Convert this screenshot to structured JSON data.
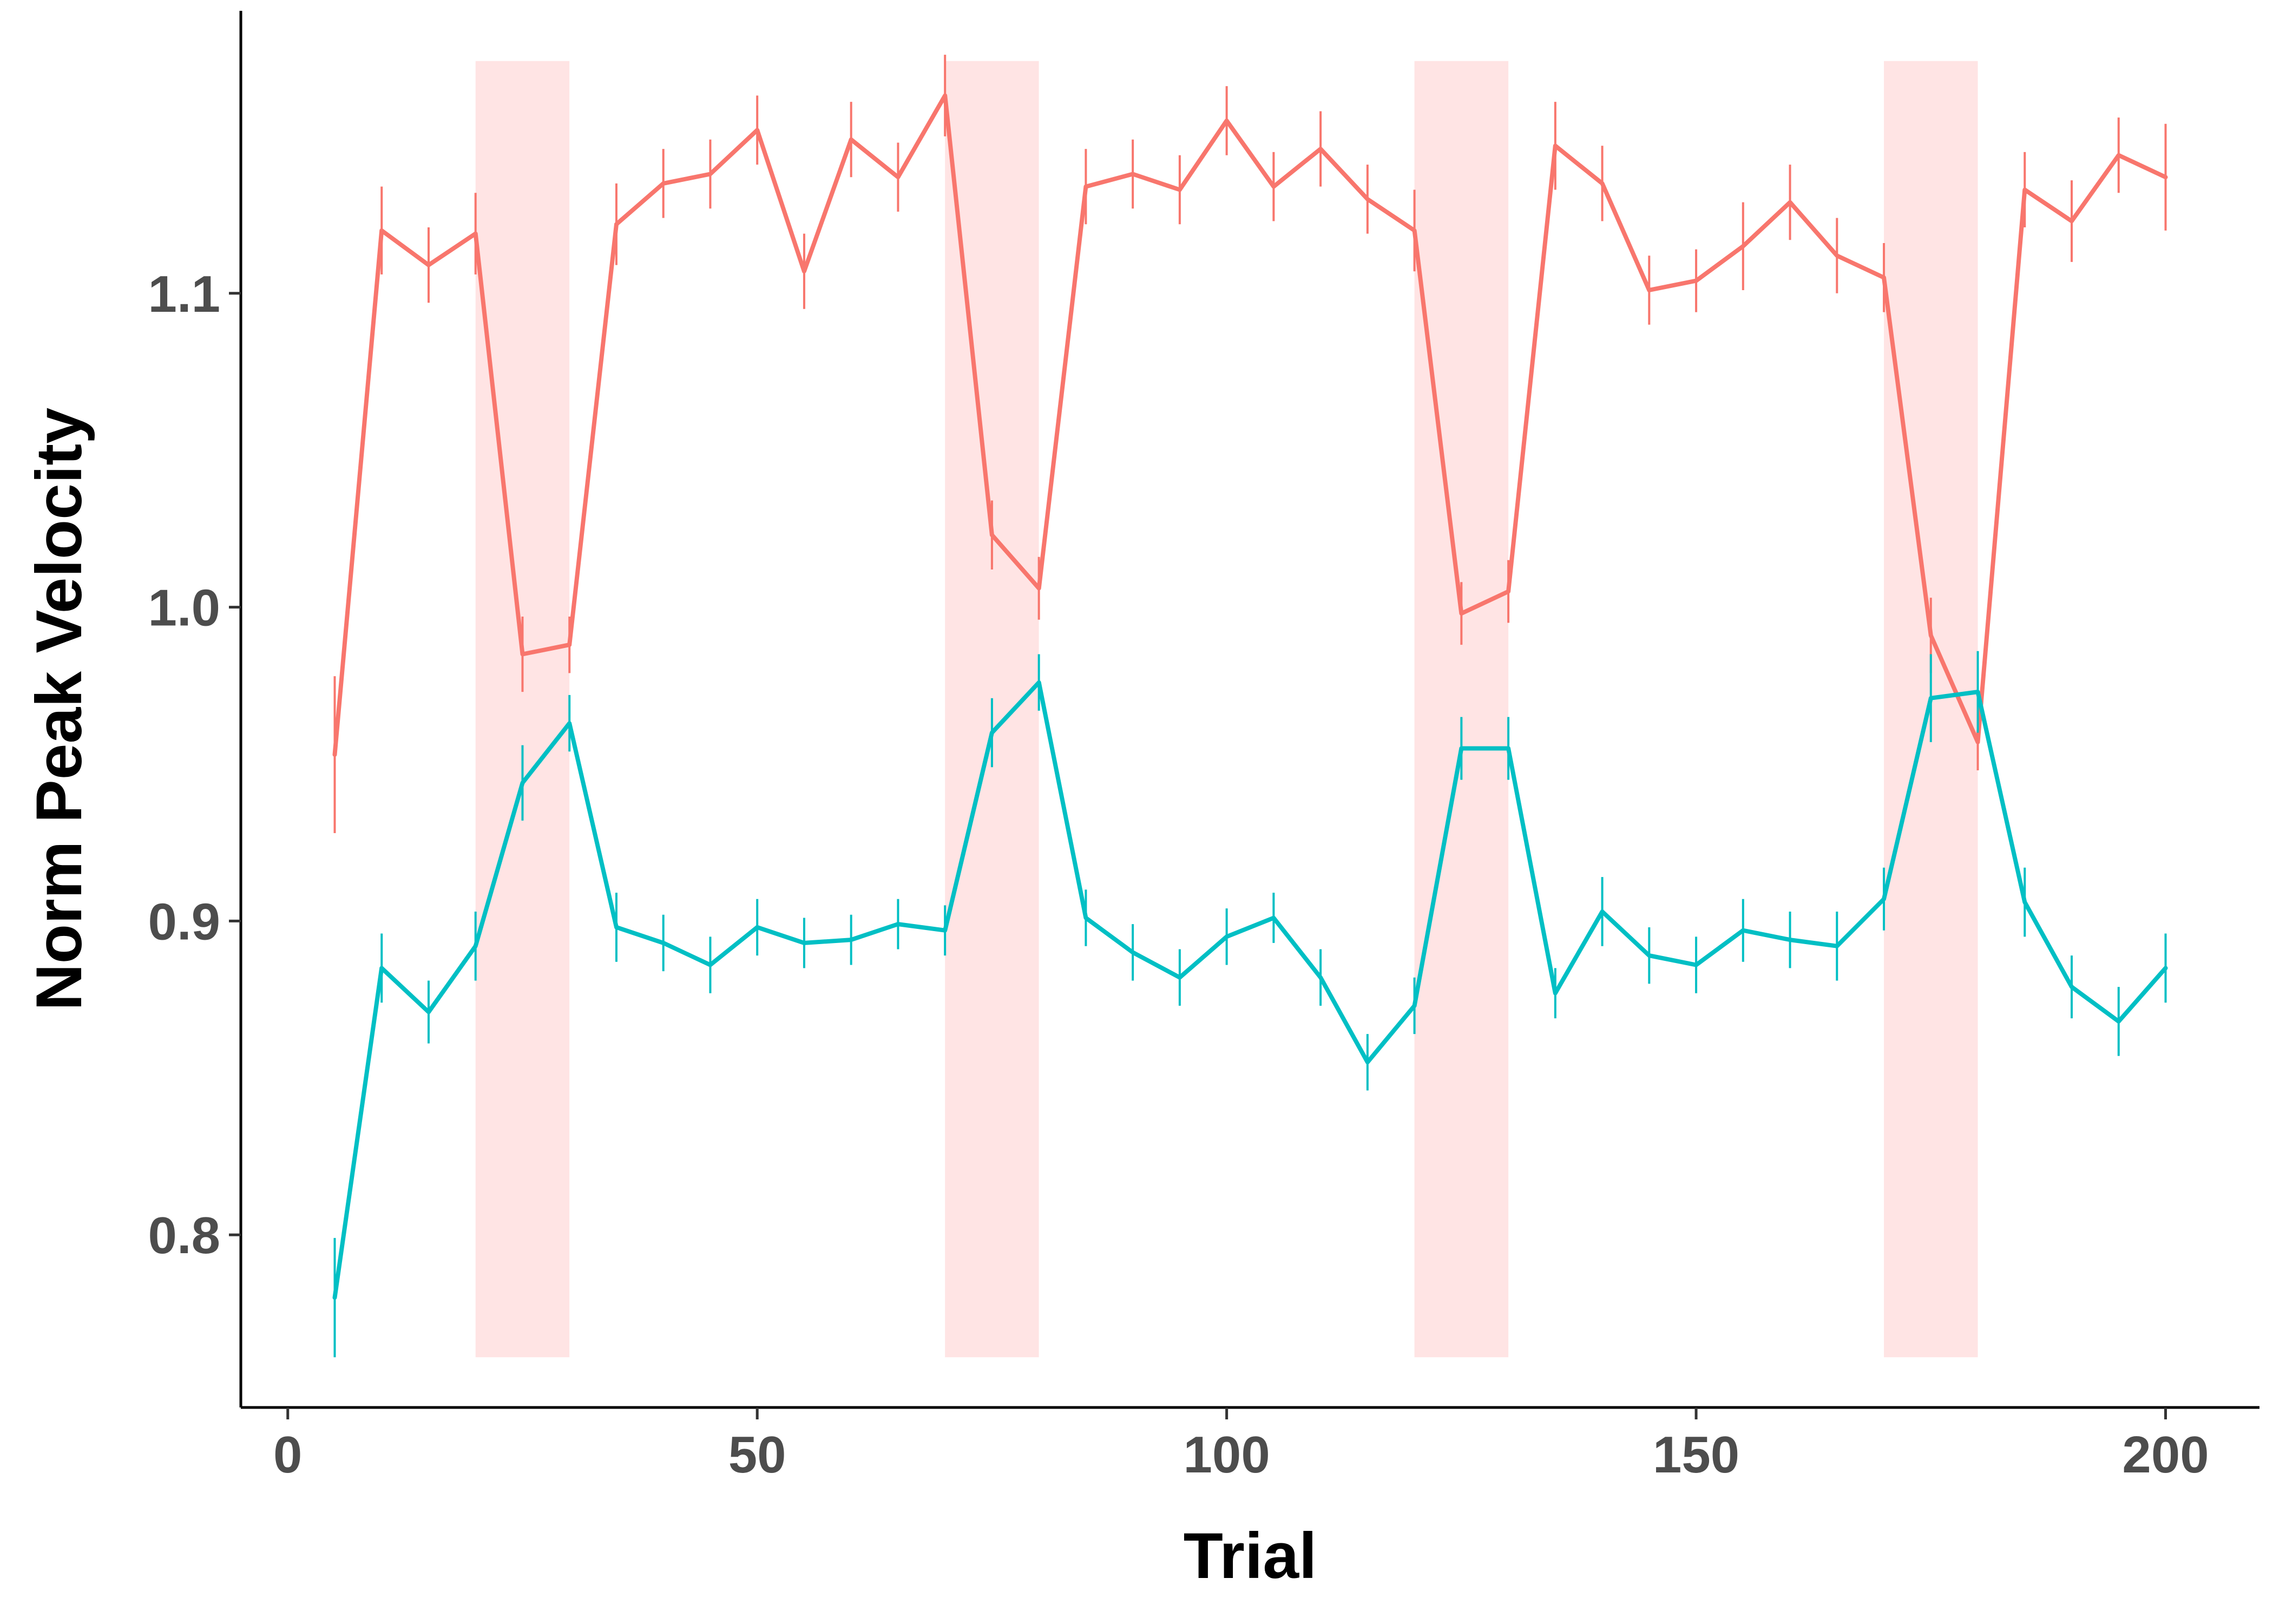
{
  "chart_data": {
    "type": "line",
    "xlabel": "Trial",
    "ylabel": "Norm Peak Velocity",
    "xlim": [
      -5,
      210
    ],
    "ylim": [
      0.745,
      1.19
    ],
    "x_ticks": [
      0,
      50,
      100,
      150,
      200
    ],
    "y_ticks": [
      0.8,
      0.9,
      1.0,
      1.1
    ],
    "x_tick_labels": [
      "0",
      "50",
      "100",
      "150",
      "200"
    ],
    "y_tick_labels": [
      "0.8",
      "0.9",
      "1.0",
      "1.1"
    ],
    "grid": false,
    "legend": "none",
    "shaded_regions": {
      "color": "#ffe4e4",
      "y_range": [
        0.761,
        1.174
      ],
      "x_ranges": [
        [
          20,
          30
        ],
        [
          70,
          80
        ],
        [
          120,
          130
        ],
        [
          170,
          180
        ]
      ]
    },
    "series": [
      {
        "color": "#f8766d",
        "x": [
          5,
          10,
          15,
          20,
          25,
          30,
          35,
          40,
          45,
          50,
          55,
          60,
          65,
          70,
          75,
          80,
          85,
          90,
          95,
          100,
          105,
          110,
          115,
          120,
          125,
          130,
          135,
          140,
          145,
          150,
          155,
          160,
          165,
          170,
          175,
          180,
          185,
          190,
          195,
          200
        ],
        "y": [
          0.953,
          1.12,
          1.109,
          1.119,
          0.985,
          0.988,
          1.122,
          1.135,
          1.138,
          1.152,
          1.107,
          1.149,
          1.137,
          1.163,
          1.023,
          1.006,
          1.134,
          1.138,
          1.133,
          1.155,
          1.134,
          1.146,
          1.13,
          1.12,
          0.998,
          1.005,
          1.147,
          1.135,
          1.101,
          1.104,
          1.115,
          1.129,
          1.112,
          1.105,
          0.991,
          0.957,
          1.133,
          1.123,
          1.144,
          1.137
        ],
        "error": [
          0.025,
          0.014,
          0.012,
          0.013,
          0.012,
          0.009,
          0.013,
          0.011,
          0.011,
          0.011,
          0.012,
          0.012,
          0.011,
          0.013,
          0.011,
          0.01,
          0.012,
          0.011,
          0.011,
          0.011,
          0.011,
          0.012,
          0.011,
          0.013,
          0.01,
          0.01,
          0.014,
          0.012,
          0.011,
          0.01,
          0.014,
          0.012,
          0.012,
          0.011,
          0.012,
          0.009,
          0.012,
          0.013,
          0.012,
          0.017
        ]
      },
      {
        "color": "#00bfc4",
        "x": [
          5,
          10,
          15,
          20,
          25,
          30,
          35,
          40,
          45,
          50,
          55,
          60,
          65,
          70,
          75,
          80,
          85,
          90,
          95,
          100,
          105,
          110,
          115,
          120,
          125,
          130,
          135,
          140,
          145,
          150,
          155,
          160,
          165,
          170,
          175,
          180,
          185,
          190,
          195,
          200
        ],
        "y": [
          0.78,
          0.885,
          0.871,
          0.892,
          0.944,
          0.963,
          0.898,
          0.893,
          0.886,
          0.898,
          0.893,
          0.894,
          0.899,
          0.897,
          0.96,
          0.976,
          0.901,
          0.89,
          0.882,
          0.895,
          0.901,
          0.882,
          0.855,
          0.873,
          0.955,
          0.955,
          0.877,
          0.903,
          0.889,
          0.886,
          0.897,
          0.894,
          0.892,
          0.907,
          0.971,
          0.973,
          0.906,
          0.879,
          0.868,
          0.885
        ],
        "error": [
          0.019,
          0.011,
          0.01,
          0.011,
          0.012,
          0.009,
          0.011,
          0.009,
          0.009,
          0.009,
          0.008,
          0.008,
          0.008,
          0.008,
          0.011,
          0.009,
          0.009,
          0.009,
          0.009,
          0.009,
          0.008,
          0.009,
          0.009,
          0.009,
          0.01,
          0.01,
          0.008,
          0.011,
          0.009,
          0.009,
          0.01,
          0.009,
          0.011,
          0.01,
          0.014,
          0.013,
          0.011,
          0.01,
          0.011,
          0.011
        ]
      }
    ]
  }
}
